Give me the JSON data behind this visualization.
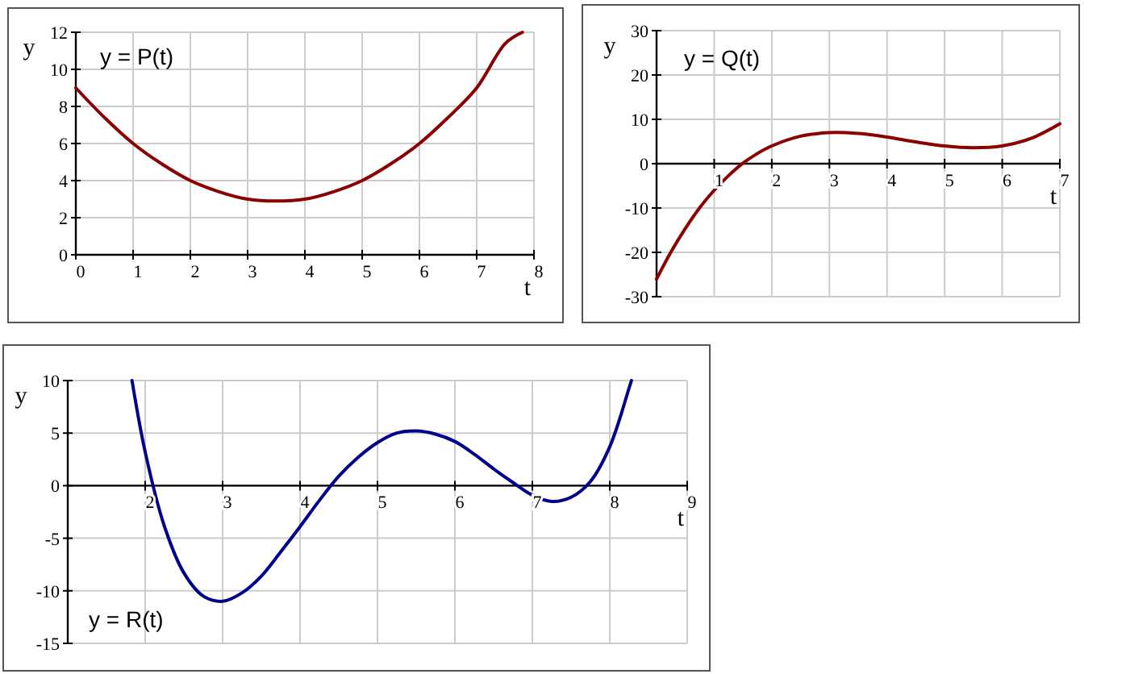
{
  "chart_data": [
    {
      "type": "line",
      "xlabel": "t",
      "ylabel": "y",
      "annotations": [
        "y = P(t)"
      ],
      "xlim": [
        0,
        8
      ],
      "ylim": [
        0,
        12
      ],
      "xticks": [
        0,
        1,
        2,
        3,
        4,
        5,
        6,
        7,
        8
      ],
      "yticks": [
        0,
        2,
        4,
        6,
        8,
        10,
        12
      ],
      "grid": true,
      "series": [
        {
          "color": "#8b0000",
          "x": [
            0,
            0.5,
            1,
            1.5,
            2,
            2.5,
            3,
            3.5,
            4,
            4.5,
            5,
            5.5,
            6,
            6.5,
            7,
            7.5,
            7.8
          ],
          "values": [
            9,
            7.4,
            6,
            4.9,
            4,
            3.4,
            3,
            2.9,
            3,
            3.4,
            4,
            4.9,
            6,
            7.4,
            9,
            11.4,
            12
          ]
        }
      ]
    },
    {
      "type": "line",
      "xlabel": "t",
      "ylabel": "y",
      "annotations": [
        "y = Q(t)"
      ],
      "xlim": [
        0,
        7
      ],
      "ylim": [
        -30,
        30
      ],
      "xticks": [
        1,
        2,
        3,
        4,
        5,
        6,
        7
      ],
      "yticks": [
        -30,
        -20,
        -10,
        0,
        10,
        20,
        30
      ],
      "grid": true,
      "series": [
        {
          "color": "#8b0000",
          "x": [
            0,
            0.25,
            0.5,
            0.75,
            1,
            1.25,
            1.5,
            1.75,
            2,
            2.5,
            3,
            3.5,
            4,
            4.5,
            5,
            5.5,
            6,
            6.5,
            7
          ],
          "values": [
            -26,
            -19.9,
            -14.6,
            -9.9,
            -6,
            -2.7,
            0.1,
            2.3,
            4,
            6.2,
            7,
            6.8,
            6,
            4.9,
            4,
            3.6,
            4,
            5.7,
            9
          ]
        }
      ]
    },
    {
      "type": "line",
      "xlabel": "t",
      "ylabel": "y",
      "annotations": [
        "y = R(t)"
      ],
      "xlim": [
        1,
        9
      ],
      "ylim": [
        -15,
        10
      ],
      "xticks": [
        2,
        3,
        4,
        5,
        6,
        7,
        8,
        9
      ],
      "yticks": [
        -15,
        -10,
        -5,
        0,
        5,
        10
      ],
      "grid": true,
      "series": [
        {
          "color": "#00008b",
          "x": [
            1.83,
            2,
            2.25,
            2.5,
            2.75,
            3,
            3.25,
            3.5,
            3.75,
            4,
            4.25,
            4.5,
            4.75,
            5,
            5.25,
            5.5,
            5.75,
            6,
            6.25,
            6.5,
            6.75,
            7,
            7.25,
            7.5,
            7.75,
            8,
            8.25,
            8.28
          ],
          "values": [
            10,
            3.2,
            -3.9,
            -8.3,
            -10.5,
            -11,
            -10.2,
            -8.6,
            -6.3,
            -3.9,
            -1.4,
            0.9,
            2.7,
            4.1,
            5,
            5.2,
            4.9,
            4.2,
            3,
            1.6,
            0.3,
            -0.9,
            -1.5,
            -1.1,
            0.4,
            3.7,
            9.3,
            10
          ]
        }
      ]
    }
  ]
}
